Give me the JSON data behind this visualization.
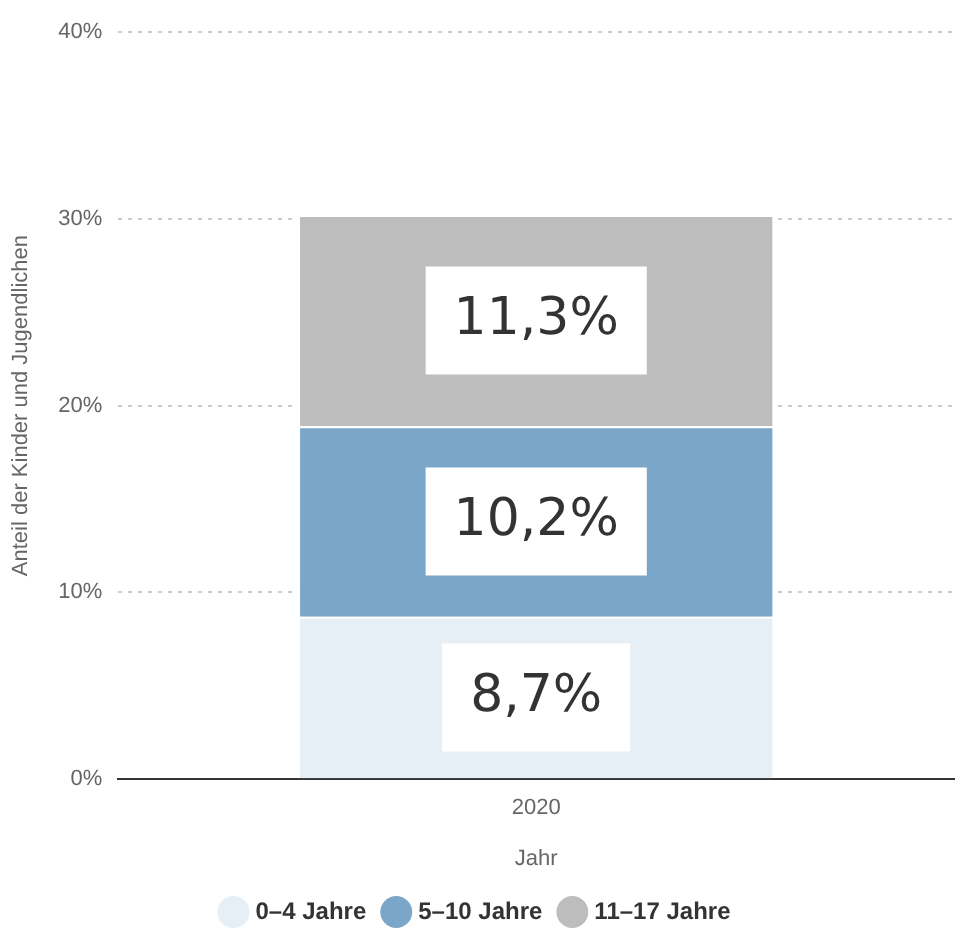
{
  "chart_data": {
    "type": "bar",
    "stacked": true,
    "categories": [
      "2020"
    ],
    "xlabel": "Jahr",
    "ylabel": "Anteil der Kinder und Jugendlichen",
    "series": [
      {
        "name": "0–4 Jahre",
        "color": "#e6eef6",
        "values": [
          8.7
        ],
        "value_labels": [
          "8,7%"
        ]
      },
      {
        "name": "5–10 Jahre",
        "color": "#7aa6c9",
        "values": [
          10.2
        ],
        "value_labels": [
          "10,2%"
        ]
      },
      {
        "name": "11–17 Jahre",
        "color": "#bdbdbd",
        "values": [
          11.3
        ],
        "value_labels": [
          "11,3%"
        ]
      }
    ],
    "ylim": [
      0,
      40
    ],
    "yticks": [
      {
        "value": 0,
        "label": "0%"
      },
      {
        "value": 10,
        "label": "10%"
      },
      {
        "value": 20,
        "label": "20%"
      },
      {
        "value": 30,
        "label": "30%"
      },
      {
        "value": 40,
        "label": "40%"
      }
    ],
    "grid": "y",
    "legend": "bottom"
  }
}
